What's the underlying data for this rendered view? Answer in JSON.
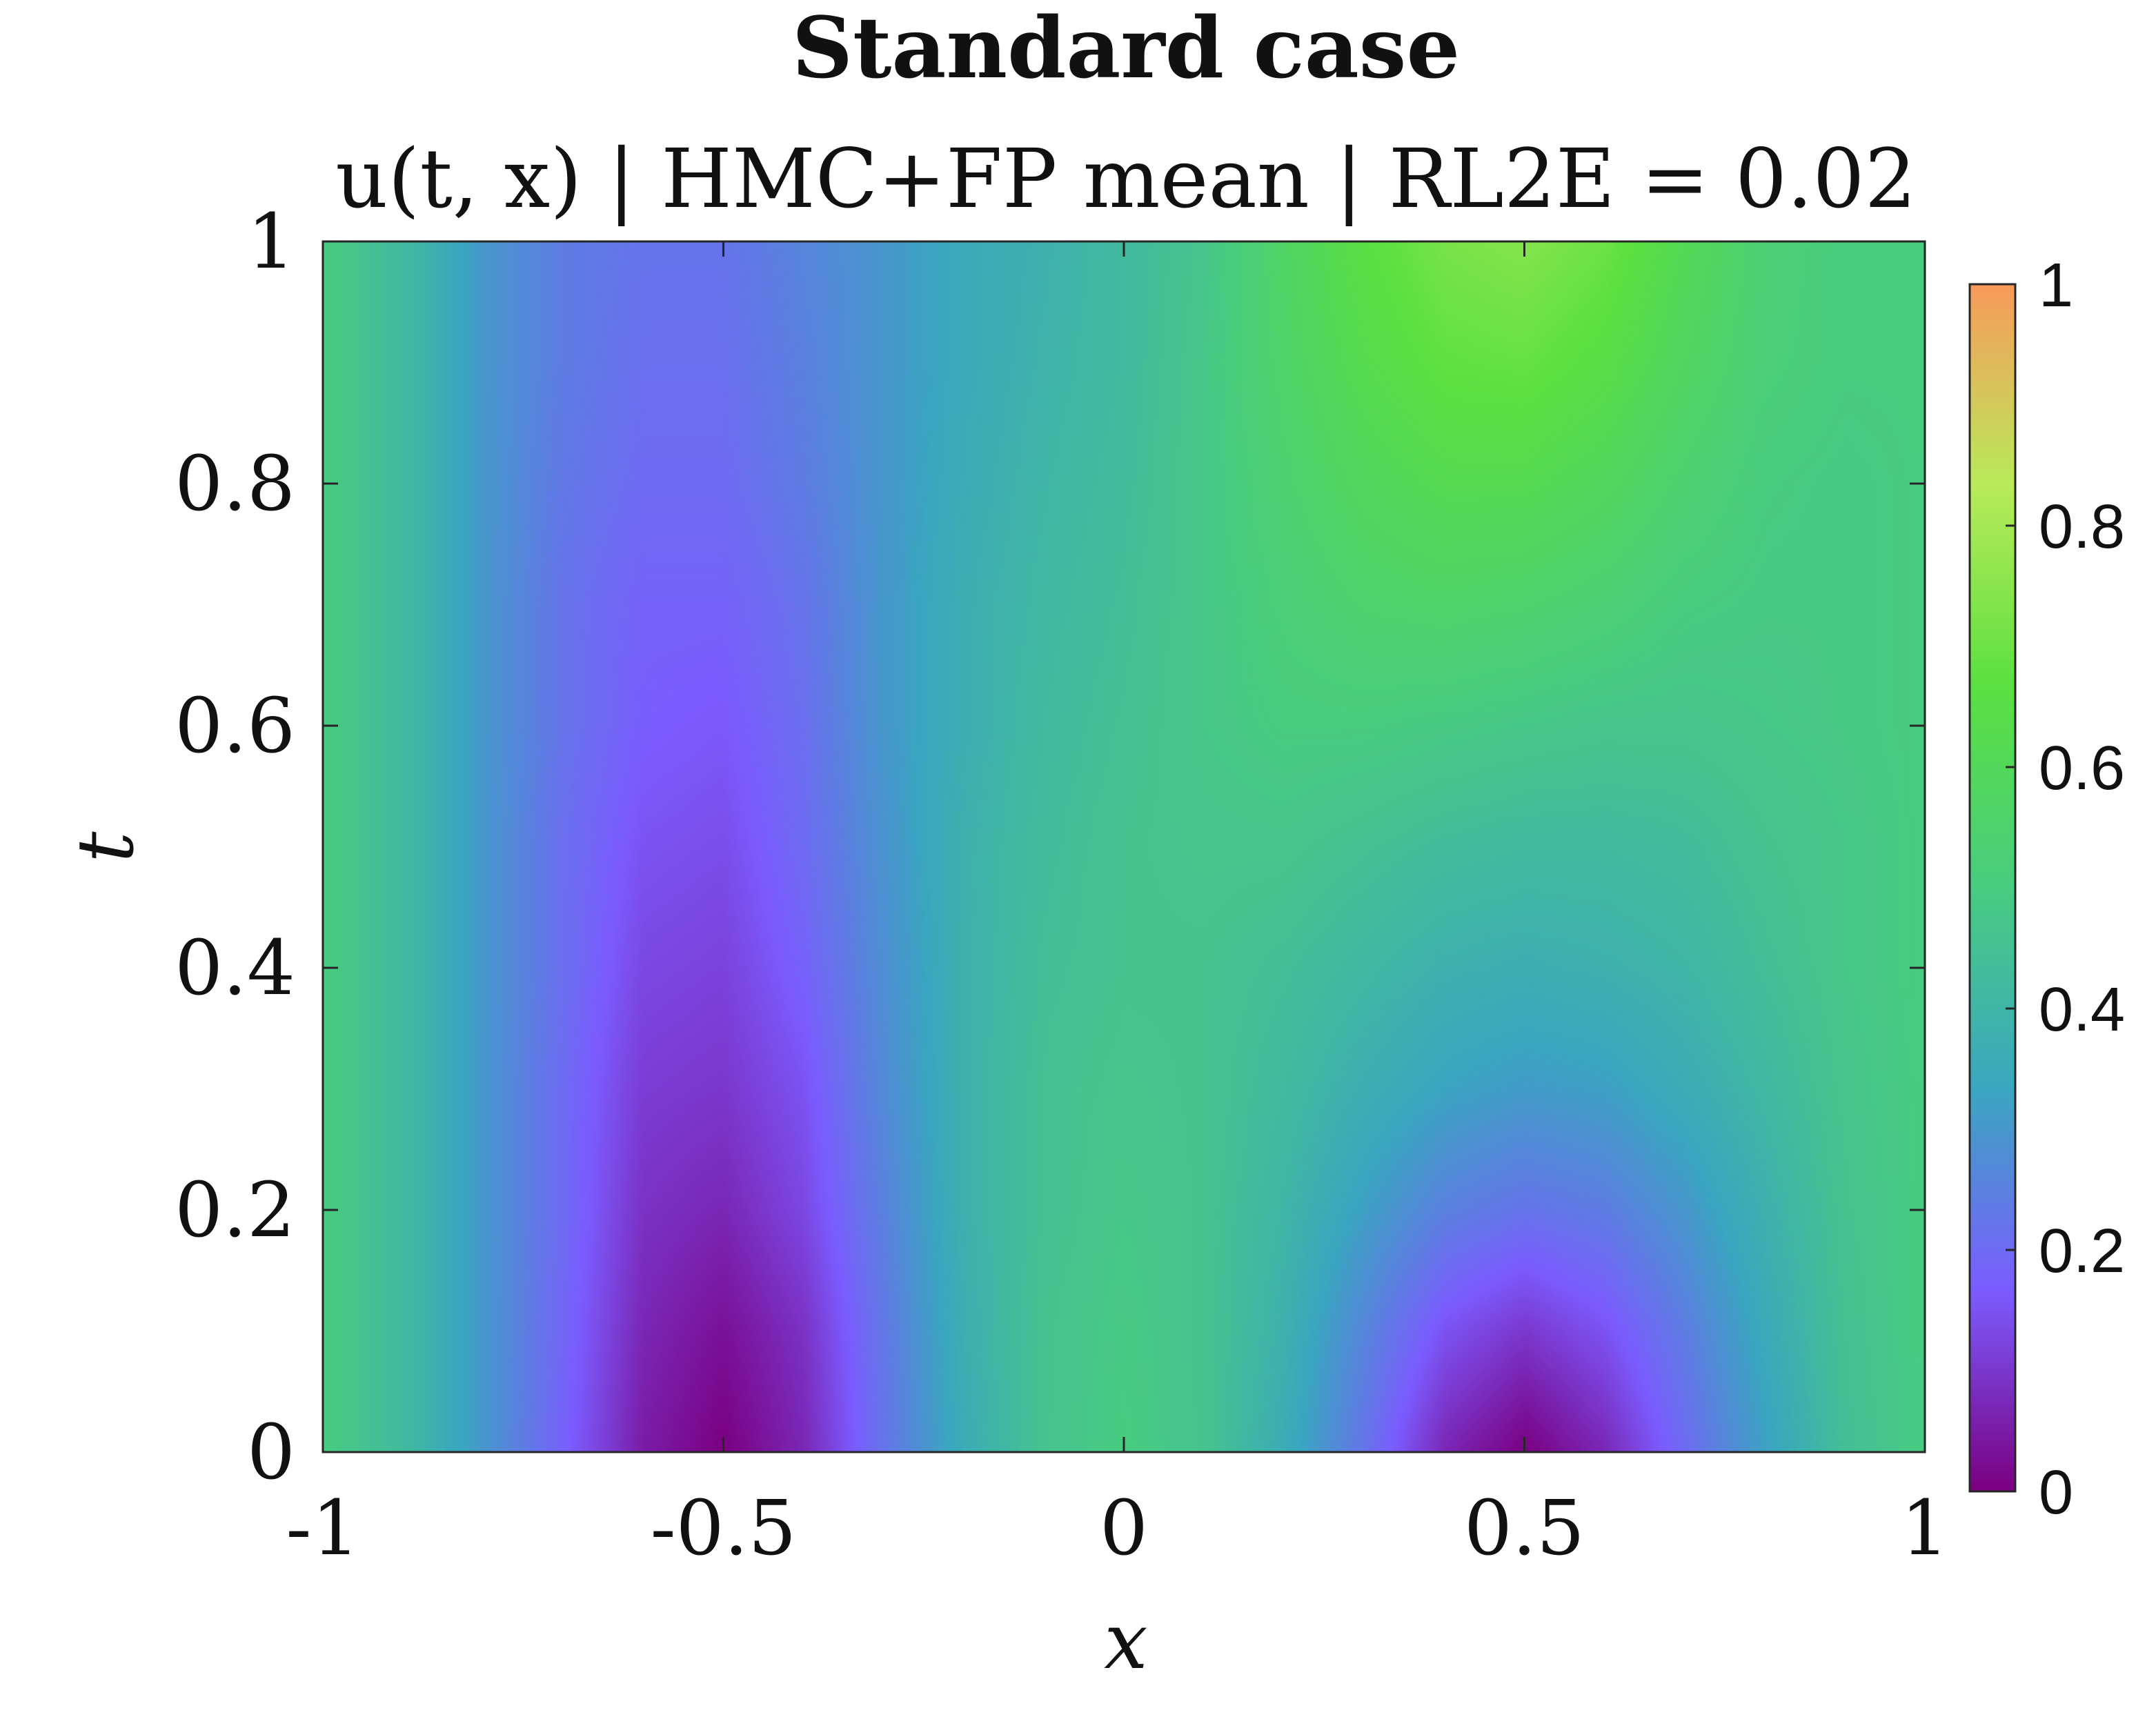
{
  "chart_data": {
    "type": "heatmap",
    "title": "Standard case",
    "subtitle": "u(t, x) | HMC+FP mean | RL2E = 0.02",
    "xlabel": "x",
    "ylabel": "t",
    "xlim": [
      -1,
      1
    ],
    "ylim": [
      0,
      1
    ],
    "clim": [
      0,
      1
    ],
    "x_ticks": [
      -1,
      -0.5,
      0,
      0.5,
      1
    ],
    "x_tick_labels": [
      "-1",
      "-0.5",
      "0",
      "0.5",
      "1"
    ],
    "y_ticks": [
      0,
      0.2,
      0.4,
      0.6,
      0.8,
      1
    ],
    "y_tick_labels": [
      "0",
      "0.2",
      "0.4",
      "0.6",
      "0.8",
      "1"
    ],
    "colorbar_ticks": [
      0,
      0.2,
      0.4,
      0.6,
      0.8,
      1
    ],
    "colorbar_tick_labels": [
      "0",
      "0.2",
      "0.4",
      "0.6",
      "0.8",
      "1"
    ],
    "colormap": [
      "#7a0080",
      "#7b5cff",
      "#3aa6c0",
      "#48cc80",
      "#5ae040",
      "#b8ea5a",
      "#f89a5a"
    ],
    "grid": false,
    "x": [
      -1,
      -0.9,
      -0.8,
      -0.7,
      -0.6,
      -0.5,
      -0.4,
      -0.3,
      -0.2,
      -0.1,
      0,
      0.1,
      0.2,
      0.3,
      0.4,
      0.5,
      0.6,
      0.7,
      0.8,
      0.9,
      1
    ],
    "t": [
      0,
      0.1,
      0.2,
      0.3,
      0.4,
      0.5,
      0.6,
      0.7,
      0.8,
      0.9,
      1
    ],
    "values": [
      [
        0.5,
        0.42,
        0.3,
        0.18,
        0.05,
        0.0,
        0.07,
        0.22,
        0.36,
        0.46,
        0.5,
        0.46,
        0.36,
        0.22,
        0.07,
        0.0,
        0.07,
        0.2,
        0.32,
        0.44,
        0.5
      ],
      [
        0.5,
        0.42,
        0.3,
        0.19,
        0.07,
        0.03,
        0.09,
        0.23,
        0.37,
        0.46,
        0.49,
        0.46,
        0.38,
        0.26,
        0.15,
        0.1,
        0.15,
        0.24,
        0.35,
        0.45,
        0.5
      ],
      [
        0.5,
        0.42,
        0.3,
        0.2,
        0.09,
        0.07,
        0.13,
        0.25,
        0.38,
        0.45,
        0.48,
        0.46,
        0.4,
        0.32,
        0.25,
        0.22,
        0.24,
        0.3,
        0.38,
        0.46,
        0.5
      ],
      [
        0.5,
        0.42,
        0.3,
        0.2,
        0.11,
        0.1,
        0.15,
        0.27,
        0.38,
        0.45,
        0.47,
        0.46,
        0.42,
        0.37,
        0.33,
        0.31,
        0.32,
        0.36,
        0.41,
        0.47,
        0.5
      ],
      [
        0.5,
        0.42,
        0.3,
        0.21,
        0.13,
        0.12,
        0.18,
        0.28,
        0.38,
        0.44,
        0.46,
        0.46,
        0.44,
        0.41,
        0.38,
        0.37,
        0.38,
        0.4,
        0.44,
        0.48,
        0.5
      ],
      [
        0.5,
        0.42,
        0.3,
        0.21,
        0.15,
        0.14,
        0.2,
        0.29,
        0.38,
        0.43,
        0.46,
        0.47,
        0.47,
        0.45,
        0.43,
        0.42,
        0.42,
        0.43,
        0.46,
        0.48,
        0.5
      ],
      [
        0.5,
        0.42,
        0.3,
        0.22,
        0.17,
        0.16,
        0.21,
        0.3,
        0.37,
        0.42,
        0.45,
        0.48,
        0.5,
        0.5,
        0.49,
        0.48,
        0.47,
        0.47,
        0.48,
        0.49,
        0.5
      ],
      [
        0.5,
        0.42,
        0.3,
        0.22,
        0.18,
        0.18,
        0.22,
        0.3,
        0.37,
        0.41,
        0.44,
        0.48,
        0.52,
        0.55,
        0.56,
        0.55,
        0.53,
        0.5,
        0.49,
        0.49,
        0.5
      ],
      [
        0.5,
        0.42,
        0.3,
        0.23,
        0.2,
        0.2,
        0.24,
        0.3,
        0.36,
        0.4,
        0.43,
        0.48,
        0.54,
        0.59,
        0.62,
        0.62,
        0.59,
        0.54,
        0.5,
        0.49,
        0.5
      ],
      [
        0.5,
        0.42,
        0.3,
        0.24,
        0.21,
        0.21,
        0.25,
        0.3,
        0.35,
        0.39,
        0.42,
        0.48,
        0.56,
        0.63,
        0.68,
        0.69,
        0.65,
        0.58,
        0.52,
        0.5,
        0.5
      ],
      [
        0.5,
        0.42,
        0.3,
        0.24,
        0.22,
        0.22,
        0.26,
        0.3,
        0.35,
        0.38,
        0.42,
        0.47,
        0.57,
        0.66,
        0.72,
        0.74,
        0.7,
        0.61,
        0.53,
        0.5,
        0.5
      ]
    ]
  }
}
